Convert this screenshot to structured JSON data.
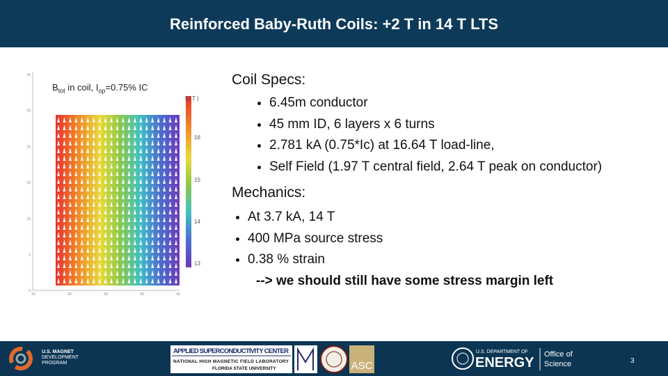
{
  "header": {
    "title": "Reinforced Baby-Ruth Coils: +2 T in 14 T LTS"
  },
  "figure": {
    "caption": [
      "B",
      "tot",
      " in coil, I",
      "op",
      "=0.75% IC"
    ],
    "colorbar_label": "B( T )",
    "colorbar_ticks": [
      "16",
      "15",
      "14",
      "13"
    ],
    "y_ticks": [
      "30",
      "25",
      "20",
      "15",
      "10",
      "5",
      "0"
    ],
    "x_ticks": [
      "20",
      "25",
      "30",
      "35",
      "40"
    ]
  },
  "specs": {
    "heading": "Coil Specs:",
    "items": [
      "6.45m conductor",
      "45 mm ID, 6 layers x 6 turns",
      "2.781 kA (0.75*Ic) at 16.64 T load-line,",
      "Self Field (1.97 T central field, 2.64 T peak on conductor)"
    ]
  },
  "mechanics": {
    "heading": "Mechanics:",
    "items": [
      "At 3.7 kA, 14 T",
      "400 MPa source stress",
      "0.38 % strain"
    ],
    "note": "--> we should still have some stress margin left"
  },
  "footer": {
    "usmdp": [
      "U.S. MAGNET",
      "DEVELOPMENT",
      "PROGRAM"
    ],
    "asc": {
      "title": "APPLIED SUPERCONDUCTIVITY CENTER",
      "lines": [
        "NATIONAL HIGH MAGNETIC FIELD LABORATORY",
        "FLORIDA STATE UNIVERSITY"
      ]
    },
    "asc_logo": "ASC",
    "doe": {
      "dept": "U.S. DEPARTMENT OF",
      "energy": "ENERGY",
      "office": [
        "Office of",
        "Science"
      ]
    },
    "page": "3"
  }
}
